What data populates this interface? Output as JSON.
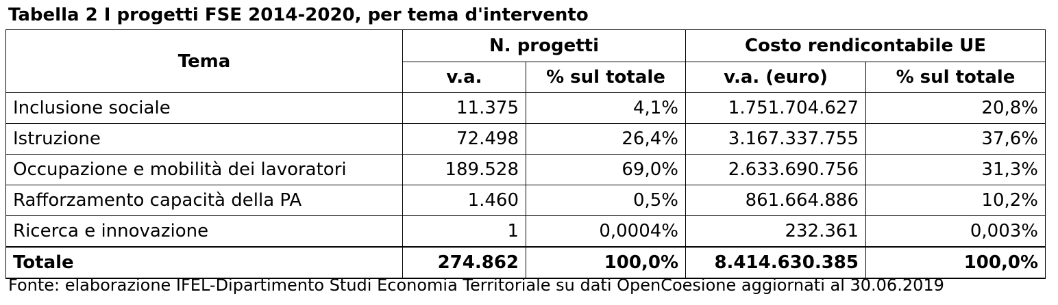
{
  "title": "Tabella 2 I progetti FSE 2014-2020, per tema d'intervento",
  "header": {
    "tema": "Tema",
    "group_progetti": "N. progetti",
    "group_costo": "Costo rendicontabile UE",
    "col_va": "v.a.",
    "col_pct1": "% sul totale",
    "col_va_euro": "v.a. (euro)",
    "col_pct2": "% sul totale"
  },
  "rows": [
    {
      "tema": "Inclusione sociale",
      "n": "11.375",
      "n_pct": "4,1%",
      "costo": "1.751.704.627",
      "costo_pct": "20,8%"
    },
    {
      "tema": "Istruzione",
      "n": "72.498",
      "n_pct": "26,4%",
      "costo": "3.167.337.755",
      "costo_pct": "37,6%"
    },
    {
      "tema": "Occupazione e mobilità dei lavoratori",
      "n": "189.528",
      "n_pct": "69,0%",
      "costo": "2.633.690.756",
      "costo_pct": "31,3%"
    },
    {
      "tema": "Rafforzamento capacità della PA",
      "n": "1.460",
      "n_pct": "0,5%",
      "costo": "861.664.886",
      "costo_pct": "10,2%"
    },
    {
      "tema": "Ricerca e innovazione",
      "n": "1",
      "n_pct": "0,0004%",
      "costo": "232.361",
      "costo_pct": "0,003%"
    }
  ],
  "total": {
    "tema": "Totale",
    "n": "274.862",
    "n_pct": "100,0%",
    "costo": "8.414.630.385",
    "costo_pct": "100,0%"
  },
  "source": "Fonte: elaborazione IFEL-Dipartimento Studi Economia Territoriale su dati OpenCoesione aggiornati al 30.06.2019"
}
